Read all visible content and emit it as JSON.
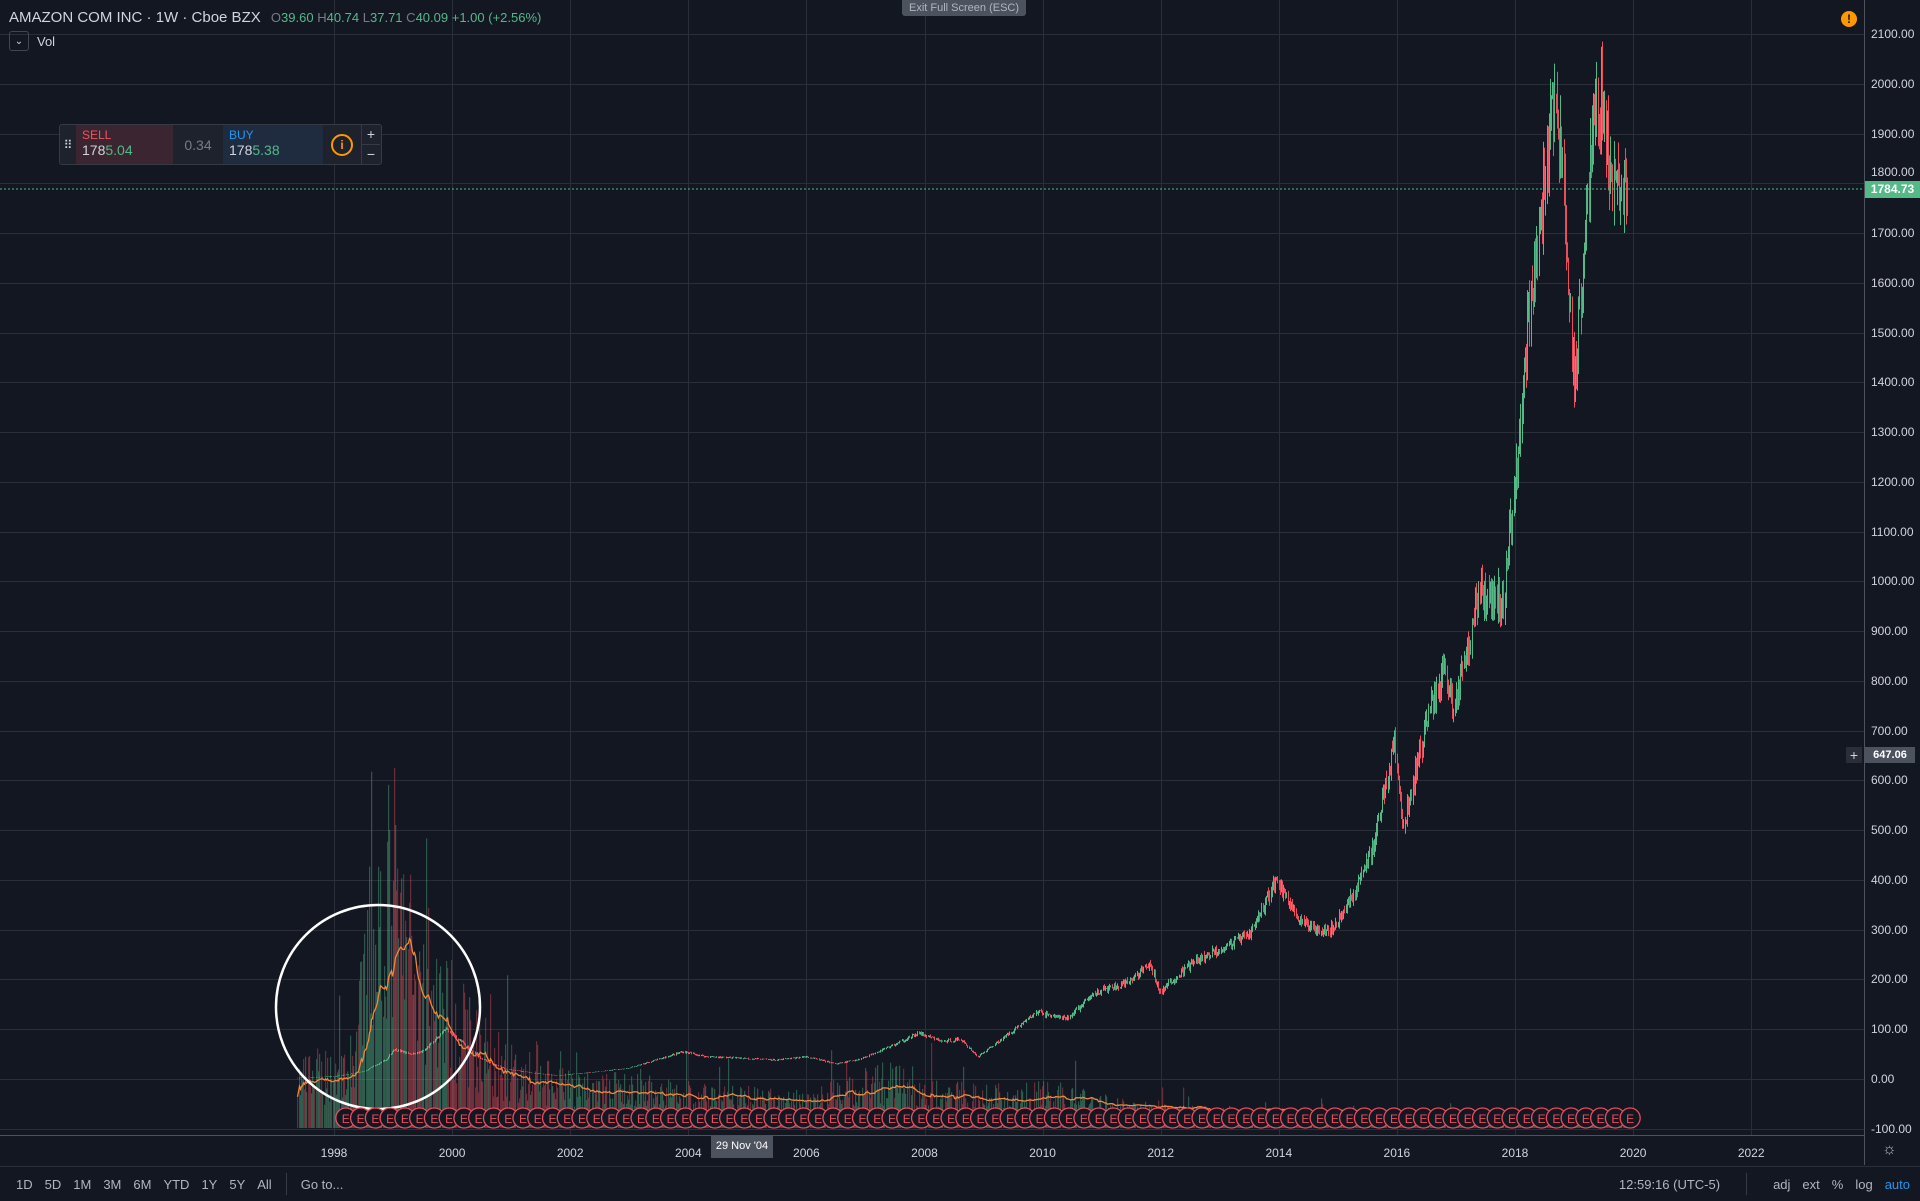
{
  "header": {
    "symbol": "AMAZON COM INC",
    "interval": "1W",
    "exchange": "Cboe BZX",
    "open_label": "O",
    "open": "39.60",
    "high_label": "H",
    "high": "40.74",
    "low_label": "L",
    "low": "37.71",
    "close_label": "C",
    "close": "40.09",
    "change": "+1.00 (+2.56%)"
  },
  "indicator": {
    "toggle_icon": "chevron-down-icon",
    "label": "Vol"
  },
  "fullscreen_tooltip": "Exit Full Screen (ESC)",
  "warning_icon": "!",
  "trade_panel": {
    "sell_label": "SELL",
    "sell_prefix": "178",
    "sell_suffix": "5.04",
    "spread": "0.34",
    "buy_label": "BUY",
    "buy_prefix": "178",
    "buy_suffix": "5.38",
    "info_icon": "i",
    "plus": "+",
    "minus": "−"
  },
  "price_axis": {
    "labels": [
      "2100.00",
      "2000.00",
      "1900.00",
      "1800.00",
      "1700.00",
      "1600.00",
      "1500.00",
      "1400.00",
      "1300.00",
      "1200.00",
      "1100.00",
      "1000.00",
      "900.00",
      "800.00",
      "700.00",
      "600.00",
      "500.00",
      "400.00",
      "300.00",
      "200.00",
      "100.00",
      "0.00",
      "-100.00"
    ],
    "last_price": "1784.73",
    "crosshair_price": "647.06",
    "crosshair_plus": "+"
  },
  "time_axis": {
    "labels": [
      "1998",
      "2000",
      "2002",
      "2004",
      "2006",
      "2008",
      "2010",
      "2012",
      "2014",
      "2016",
      "2018",
      "2020",
      "2022"
    ],
    "crosshair_date": "29 Nov '04",
    "settings_icon": "☼"
  },
  "bottom_bar": {
    "ranges": [
      "1D",
      "5D",
      "1M",
      "3M",
      "6M",
      "YTD",
      "1Y",
      "5Y",
      "All"
    ],
    "goto": "Go to...",
    "clock": "12:59:16 (UTC-5)",
    "options": [
      "adj",
      "ext",
      "%",
      "log"
    ],
    "auto": "auto"
  },
  "colors": {
    "up": "#53b987",
    "down": "#eb4d5c",
    "ma": "#f0883a",
    "earnings": "#eb4d5c"
  },
  "chart_data": {
    "type": "candlestick",
    "title": "AMAZON COM INC · 1W · Cboe BZX",
    "ylim": [
      -100,
      2100
    ],
    "xlim": [
      1996.3,
      2023.2
    ],
    "price_path": [
      [
        1997.38,
        2
      ],
      [
        1998.0,
        5
      ],
      [
        1998.5,
        15
      ],
      [
        1998.9,
        40
      ],
      [
        1999.0,
        60
      ],
      [
        1999.3,
        50
      ],
      [
        1999.5,
        55
      ],
      [
        1999.9,
        100
      ],
      [
        2000.2,
        70
      ],
      [
        2000.5,
        40
      ],
      [
        2000.9,
        20
      ],
      [
        2001.5,
        10
      ],
      [
        2001.8,
        7
      ],
      [
        2002.5,
        15
      ],
      [
        2003.0,
        22
      ],
      [
        2003.5,
        40
      ],
      [
        2003.9,
        55
      ],
      [
        2004.3,
        45
      ],
      [
        2004.9,
        42
      ],
      [
        2005.5,
        38
      ],
      [
        2006.0,
        45
      ],
      [
        2006.5,
        30
      ],
      [
        2006.9,
        40
      ],
      [
        2007.5,
        70
      ],
      [
        2007.9,
        92
      ],
      [
        2008.3,
        75
      ],
      [
        2008.6,
        80
      ],
      [
        2008.9,
        45
      ],
      [
        2009.3,
        80
      ],
      [
        2009.9,
        135
      ],
      [
        2010.4,
        120
      ],
      [
        2010.9,
        175
      ],
      [
        2011.4,
        190
      ],
      [
        2011.8,
        230
      ],
      [
        2011.99,
        175
      ],
      [
        2012.5,
        230
      ],
      [
        2012.9,
        255
      ],
      [
        2013.5,
        290
      ],
      [
        2013.95,
        400
      ],
      [
        2014.4,
        310
      ],
      [
        2014.9,
        300
      ],
      [
        2015.3,
        380
      ],
      [
        2015.6,
        470
      ],
      [
        2015.95,
        680
      ],
      [
        2016.1,
        500
      ],
      [
        2016.5,
        720
      ],
      [
        2016.8,
        830
      ],
      [
        2016.95,
        740
      ],
      [
        2017.4,
        980
      ],
      [
        2017.8,
        960
      ],
      [
        2018.0,
        1200
      ],
      [
        2018.2,
        1500
      ],
      [
        2018.7,
        2000
      ],
      [
        2018.9,
        1600
      ],
      [
        2018.99,
        1400
      ],
      [
        2019.3,
        1900
      ],
      [
        2019.5,
        1990
      ],
      [
        2019.6,
        1800
      ],
      [
        2019.9,
        1785
      ]
    ],
    "volume_profile": [
      [
        1997.38,
        0.15
      ],
      [
        1998.3,
        0.2
      ],
      [
        1998.6,
        0.55
      ],
      [
        1998.9,
        0.75
      ],
      [
        1999.1,
        0.65
      ],
      [
        1999.5,
        0.45
      ],
      [
        2000.0,
        0.35
      ],
      [
        2000.5,
        0.25
      ],
      [
        2001.0,
        0.18
      ],
      [
        2002,
        0.12
      ],
      [
        2003,
        0.12
      ],
      [
        2004,
        0.1
      ],
      [
        2006,
        0.08
      ],
      [
        2007.4,
        0.15
      ],
      [
        2008,
        0.1
      ],
      [
        2009,
        0.1
      ],
      [
        2010,
        0.1
      ],
      [
        2012,
        0.05
      ],
      [
        2014,
        0.04
      ],
      [
        2016,
        0.03
      ],
      [
        2018,
        0.03
      ],
      [
        2019.9,
        0.02
      ]
    ],
    "earnings_marker": "E",
    "earnings_range": [
      1998.2,
      2020.1
    ]
  }
}
